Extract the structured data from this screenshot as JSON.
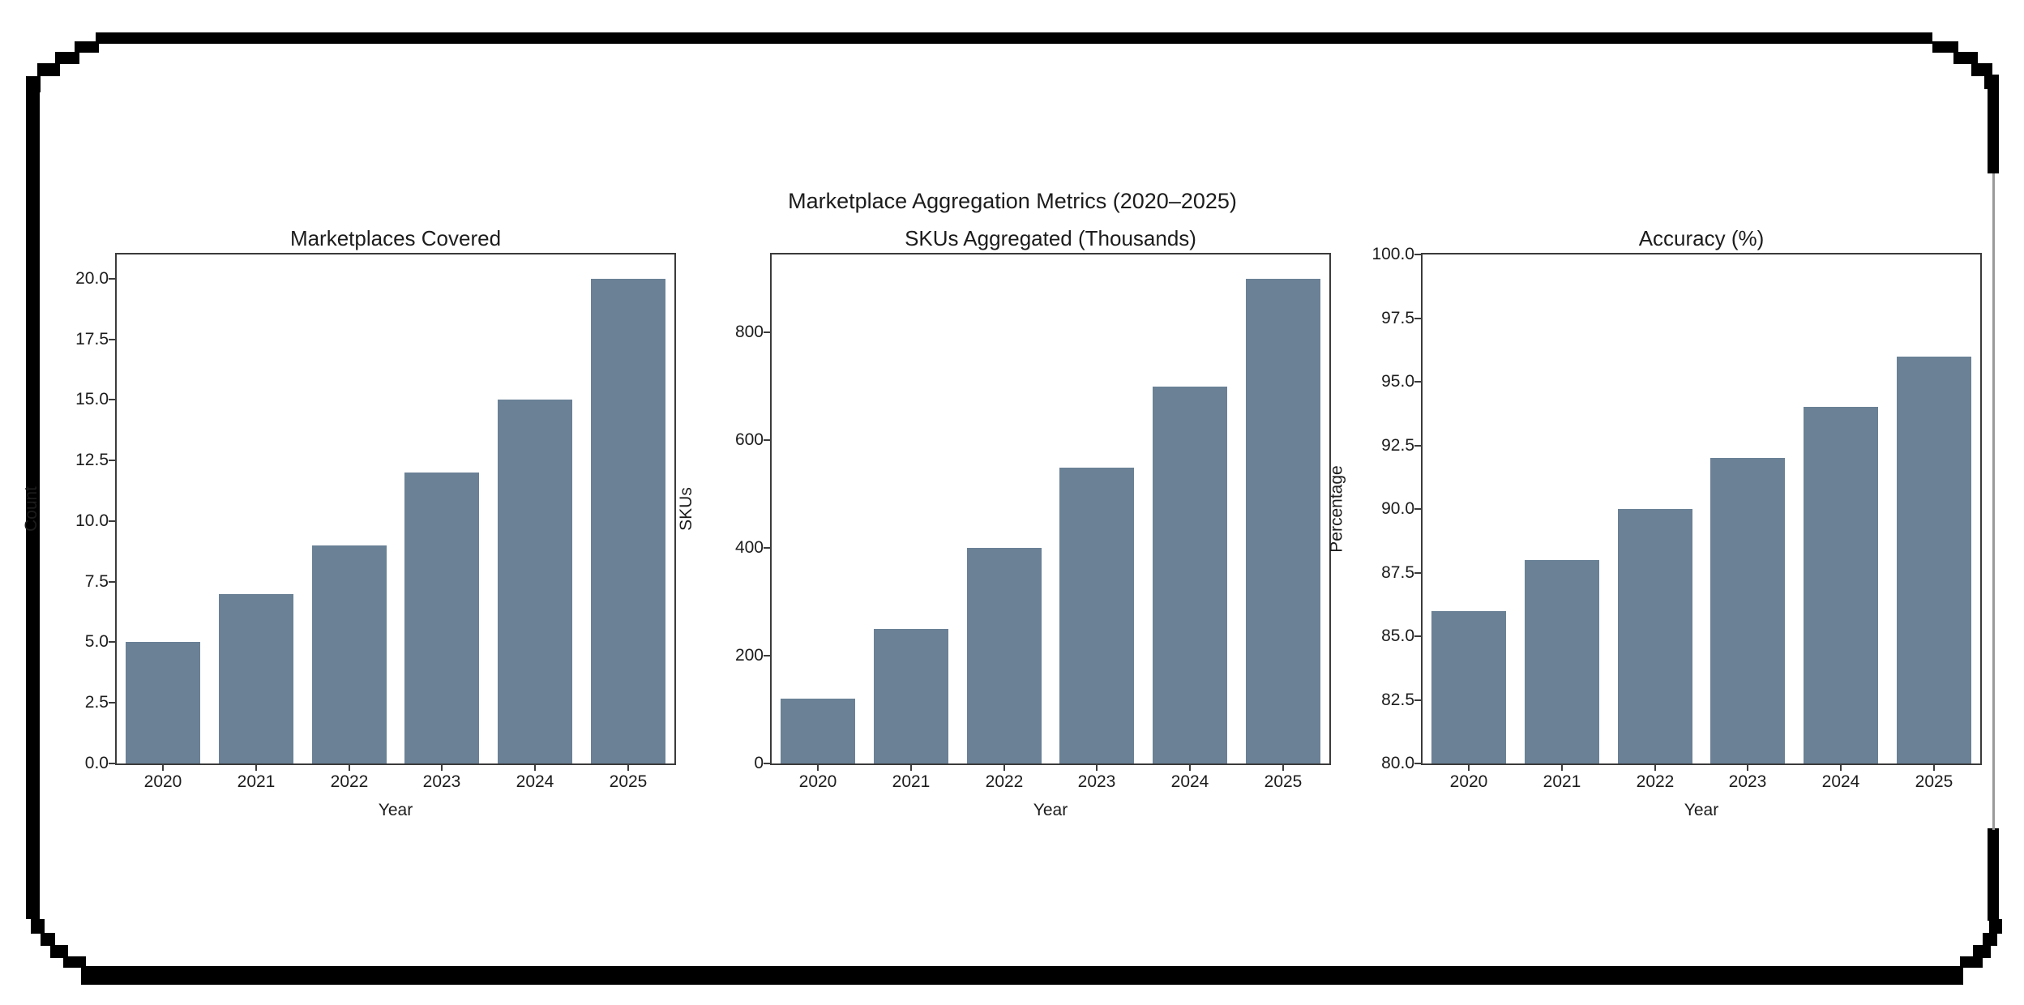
{
  "figure": {
    "suptitle": "Marketplace Aggregation Metrics (2020–2025)"
  },
  "chart_data": [
    {
      "type": "bar",
      "title": "Marketplaces Covered",
      "xlabel": "Year",
      "ylabel": "Count",
      "categories": [
        "2020",
        "2021",
        "2022",
        "2023",
        "2024",
        "2025"
      ],
      "values": [
        5,
        7,
        9,
        12,
        15,
        20
      ],
      "ylim": [
        0,
        21
      ],
      "yticks": [
        0,
        2.5,
        5,
        7.5,
        10,
        12.5,
        15,
        17.5,
        20
      ],
      "ytick_labels": [
        "0.0",
        "2.5",
        "5.0",
        "7.5",
        "10.0",
        "12.5",
        "15.0",
        "17.5",
        "20.0"
      ],
      "bar_color": "#6a8196",
      "grid": false,
      "legend": null
    },
    {
      "type": "bar",
      "title": "SKUs Aggregated (Thousands)",
      "xlabel": "Year",
      "ylabel": "SKUs",
      "categories": [
        "2020",
        "2021",
        "2022",
        "2023",
        "2024",
        "2025"
      ],
      "values": [
        120,
        250,
        400,
        550,
        700,
        900
      ],
      "ylim": [
        0,
        945
      ],
      "yticks": [
        0,
        200,
        400,
        600,
        800
      ],
      "ytick_labels": [
        "0",
        "200",
        "400",
        "600",
        "800"
      ],
      "bar_color": "#6a8196",
      "grid": false,
      "legend": null
    },
    {
      "type": "bar",
      "title": "Accuracy (%)",
      "xlabel": "Year",
      "ylabel": "Percentage",
      "categories": [
        "2020",
        "2021",
        "2022",
        "2023",
        "2024",
        "2025"
      ],
      "values": [
        86,
        88,
        90,
        92,
        94,
        96
      ],
      "ylim": [
        80,
        100
      ],
      "yticks": [
        80,
        82.5,
        85,
        87.5,
        90,
        92.5,
        95,
        97.5,
        100
      ],
      "ytick_labels": [
        "80.0",
        "82.5",
        "85.0",
        "87.5",
        "90.0",
        "92.5",
        "95.0",
        "97.5",
        "100.0"
      ],
      "bar_color": "#6a8196",
      "grid": false,
      "legend": null
    }
  ],
  "colors": {
    "bar": "#6a8196",
    "spine": "#3b3b3b",
    "frame_border": "#000000",
    "frame_edge_thin": "#9a9a9a",
    "background": "#ffffff",
    "text": "#1c1c1c"
  }
}
